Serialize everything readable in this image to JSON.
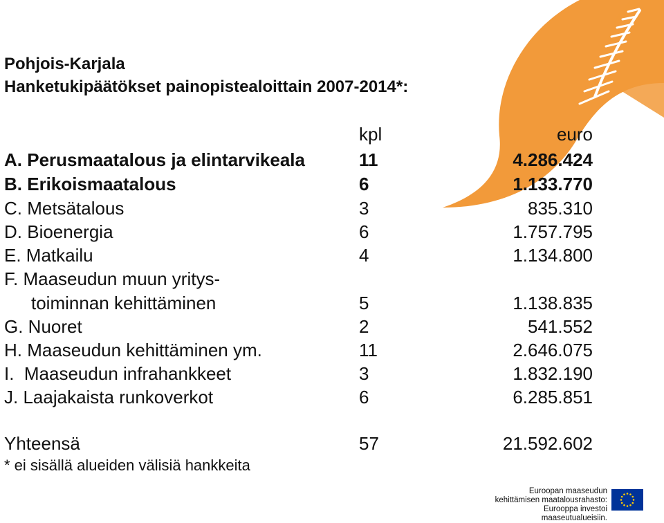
{
  "heading": {
    "line1": "Pohjois-Karjala",
    "line2": "Hanketukipäätökset painopistealoittain 2007-2014*:"
  },
  "columns": {
    "count": "kpl",
    "amount": "euro"
  },
  "rows": [
    {
      "label": "A. Perusmaatalous ja elintarvikeala",
      "kpl": "11",
      "euro": "4.286.424"
    },
    {
      "label": "B. Erikoismaatalous",
      "kpl": "6",
      "euro": "1.133.770"
    },
    {
      "label": "C. Metsätalous",
      "kpl": "3",
      "euro": "835.310"
    },
    {
      "label": "D. Bioenergia",
      "kpl": "6",
      "euro": "1.757.795"
    },
    {
      "label": "E. Matkailu",
      "kpl": "4",
      "euro": "1.134.800"
    },
    {
      "label": "F. Maaseudun muun yritys-",
      "label_cont": "toiminnan kehittäminen",
      "kpl": "5",
      "euro": "1.138.835"
    },
    {
      "label": "G. Nuoret",
      "kpl": "2",
      "euro": "541.552"
    },
    {
      "label": "H. Maaseudun kehittäminen ym.",
      "kpl": "11",
      "euro": "2.646.075"
    },
    {
      "label": "I.  Maaseudun infrahankkeet",
      "kpl": "3",
      "euro": "1.832.190"
    },
    {
      "label": "J. Laajakaista runkoverkot",
      "kpl": "6",
      "euro": "6.285.851"
    }
  ],
  "total": {
    "label": "Yhteensä",
    "kpl": "57",
    "euro": "21.592.602"
  },
  "footnote": "* ei sisällä alueiden välisiä hankkeita",
  "eu_text": {
    "line1": "Euroopan maaseudun",
    "line2": "kehittämisen maatalousrahasto:",
    "line3": "Eurooppa investoi maaseutualueisiin."
  },
  "colors": {
    "decor": "#F29A3A",
    "eu_blue": "#003399",
    "eu_star": "#FFCC00"
  },
  "icons": {
    "decoration": "orange-ribbon-graphic",
    "flag": "eu-flag-icon"
  }
}
